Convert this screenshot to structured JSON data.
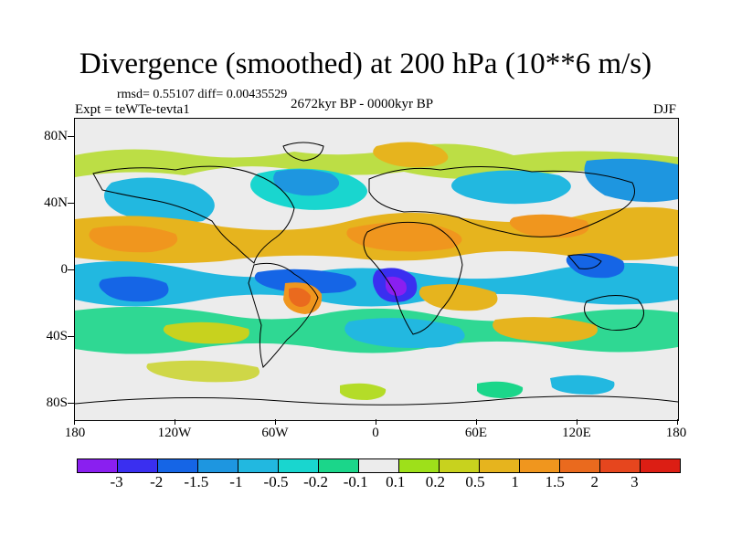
{
  "map": {
    "title": "Divergence (smoothed) at 200 hPa (10**6 m/s)",
    "rmsd_text": "rmsd= 0.55107 diff= 0.00435529",
    "expt_text": "Expt = teWTe-tevta1",
    "period_text": "2672kyr BP - 0000kyr BP",
    "season_text": "DJF",
    "y_axis_labels": [
      "80N",
      "40N",
      "0",
      "40S",
      "80S"
    ],
    "x_axis_labels": [
      "180",
      "120W",
      "60W",
      "0",
      "60E",
      "120E",
      "180"
    ]
  },
  "colorbar": {
    "labels": [
      "-3",
      "-2",
      "-1.5",
      "-1",
      "-0.5",
      "-0.2",
      "-0.1",
      "0.1",
      "0.2",
      "0.5",
      "1",
      "1.5",
      "2",
      "3"
    ],
    "colors": [
      "#8a1ff0",
      "#3a2ff0",
      "#1565e6",
      "#1e96e0",
      "#22b8e0",
      "#19d6cf",
      "#1bd68a",
      "#ececec",
      "#9ee01a",
      "#c8d21e",
      "#e6b41e",
      "#f0961e",
      "#ea6a1e",
      "#e6461e",
      "#dc1e14"
    ]
  }
}
